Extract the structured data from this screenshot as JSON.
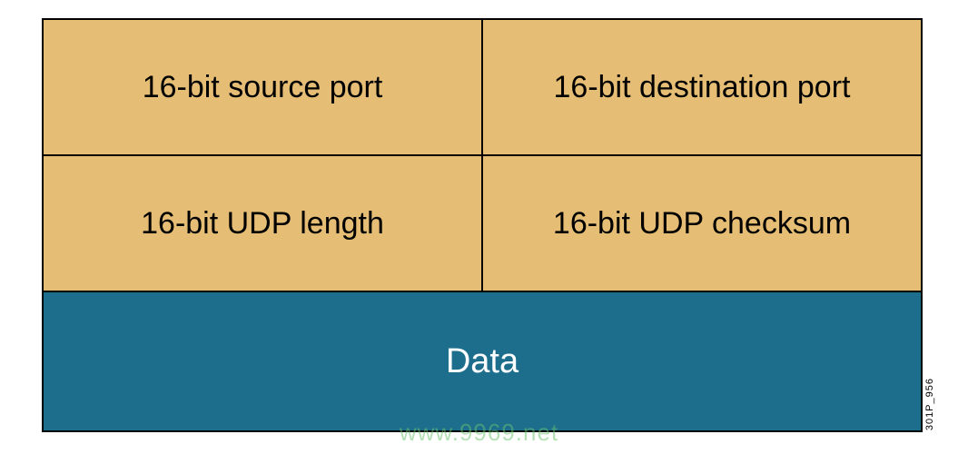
{
  "diagram": {
    "type": "table",
    "header_bg_color": "#e6bd75",
    "data_bg_color": "#1d6e8c",
    "border_color": "#000000",
    "header_text_color": "#000000",
    "data_text_color": "#ffffff",
    "header_font_size": 34,
    "data_font_size": 38,
    "row1": {
      "left": "16-bit source port",
      "right": "16-bit destination port"
    },
    "row2": {
      "left": "16-bit UDP length",
      "right": "16-bit UDP checksum"
    },
    "data_label": "Data",
    "side_label": "301P_956"
  },
  "watermark": {
    "text": "www.9969.net",
    "color": "#6bc270"
  }
}
